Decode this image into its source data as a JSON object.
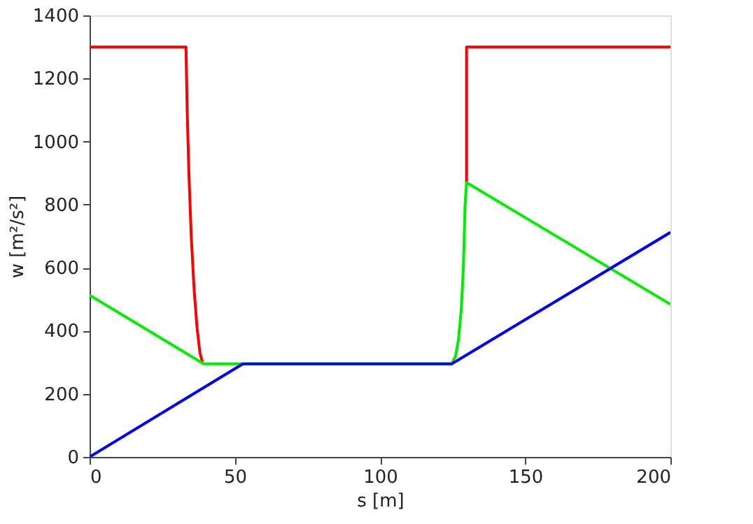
{
  "chart_data": {
    "type": "line",
    "xlabel": "s [m]",
    "ylabel": "w [m²/s²]",
    "xlim": [
      0,
      200
    ],
    "xticks": [
      0,
      50,
      100,
      150,
      200
    ],
    "ylim": [
      0,
      1400
    ],
    "yticks": [
      0,
      200,
      400,
      600,
      800,
      1000,
      1200,
      1400
    ],
    "grid": false,
    "line_style": "solid",
    "marker": "none",
    "series": [
      {
        "color": "#ff0000",
        "x": [
          0,
          33.2,
          33.6,
          34.2,
          35,
          36,
          37,
          38,
          39
        ],
        "values": [
          1300,
          1300,
          1100,
          900,
          700,
          530,
          410,
          330,
          295
        ]
      },
      {
        "color": "#ff0000",
        "x": [
          129.8,
          129.8,
          200
        ],
        "values": [
          870,
          1300,
          1300
        ]
      },
      {
        "color": "#00ee00",
        "x": [
          0,
          39.3,
          124.7,
          126,
          127,
          128,
          128.7,
          129.3,
          129.8,
          200
        ],
        "values": [
          513,
          295,
          295,
          320,
          370,
          470,
          600,
          800,
          870,
          484
        ]
      },
      {
        "color": "#0000ff",
        "x": [
          0,
          52.8,
          124.7,
          200
        ],
        "values": [
          0,
          295,
          295,
          712
        ]
      }
    ]
  }
}
